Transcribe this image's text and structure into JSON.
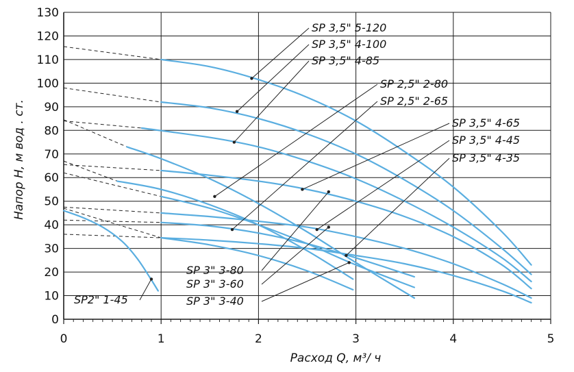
{
  "chart_data": {
    "type": "line",
    "title": "",
    "xlabel": "Расход  Q, м³/ ч",
    "ylabel": "Напор  Н, м вод . ст.",
    "xlim": [
      0,
      5
    ],
    "ylim": [
      0,
      130
    ],
    "x_ticks": [
      "0",
      "1",
      "2",
      "3",
      "4",
      "5"
    ],
    "y_ticks": [
      "0",
      "10",
      "20",
      "30",
      "40",
      "50",
      "60",
      "70",
      "80",
      "90",
      "100",
      "110",
      "120",
      "130"
    ],
    "grid": true,
    "colors": {
      "curve": "#5aaee0",
      "grid": "#1a1a1a",
      "extrapolation": "#222222",
      "leader": "#222222"
    },
    "series": [
      {
        "name": "SP 3,5\" 5-120",
        "solid": [
          [
            1.0,
            110
          ],
          [
            1.5,
            107
          ],
          [
            2.0,
            101.5
          ],
          [
            2.5,
            94
          ],
          [
            3.0,
            84
          ],
          [
            3.5,
            71
          ],
          [
            4.0,
            56
          ],
          [
            4.5,
            37
          ],
          [
            4.8,
            23
          ]
        ],
        "extrapolated": [
          [
            0,
            115.5
          ],
          [
            1.0,
            110
          ]
        ],
        "label_anchor": [
          1.93,
          102
        ]
      },
      {
        "name": "SP 3,5\" 4-100",
        "solid": [
          [
            1.0,
            92
          ],
          [
            1.5,
            89.5
          ],
          [
            2.0,
            85
          ],
          [
            2.5,
            78.5
          ],
          [
            3.0,
            70
          ],
          [
            3.5,
            59
          ],
          [
            4.0,
            46
          ],
          [
            4.5,
            30
          ],
          [
            4.8,
            19
          ]
        ],
        "extrapolated": [
          [
            0,
            98
          ],
          [
            1.0,
            92
          ]
        ],
        "label_anchor": [
          1.78,
          88
        ]
      },
      {
        "name": "SP 3,5\" 4-85",
        "solid": [
          [
            0.8,
            81
          ],
          [
            1.5,
            77
          ],
          [
            2.0,
            73
          ],
          [
            2.5,
            67
          ],
          [
            3.0,
            59.5
          ],
          [
            3.5,
            50
          ],
          [
            4.0,
            39
          ],
          [
            4.5,
            26
          ],
          [
            4.8,
            16
          ]
        ],
        "extrapolated": [
          [
            0,
            84
          ],
          [
            0.8,
            81
          ]
        ],
        "label_anchor": [
          1.75,
          75
        ]
      },
      {
        "name": "SP 2,5\" 2-80",
        "solid": [
          [
            0.65,
            73
          ],
          [
            1.0,
            68
          ],
          [
            1.5,
            59.5
          ],
          [
            2.0,
            49
          ],
          [
            2.5,
            37
          ],
          [
            3.0,
            24
          ],
          [
            3.6,
            9
          ]
        ],
        "extrapolated": [
          [
            0,
            84.5
          ],
          [
            0.65,
            73
          ]
        ],
        "label_anchor": [
          1.55,
          52
        ]
      },
      {
        "name": "SP 2,5\" 2-65",
        "solid": [
          [
            0.55,
            58.5
          ],
          [
            1.0,
            55
          ],
          [
            1.5,
            48.5
          ],
          [
            2.0,
            40
          ],
          [
            2.5,
            29
          ],
          [
            2.97,
            17
          ]
        ],
        "extrapolated": [
          [
            0,
            67
          ],
          [
            0.55,
            58.5
          ]
        ],
        "label_anchor": [
          1.73,
          38
        ]
      },
      {
        "name": "SP 3,5\" 4-65",
        "solid": [
          [
            1.0,
            63
          ],
          [
            1.5,
            61
          ],
          [
            2.0,
            58.5
          ],
          [
            2.5,
            55
          ],
          [
            3.0,
            50
          ],
          [
            3.5,
            43.5
          ],
          [
            4.0,
            35
          ],
          [
            4.5,
            23
          ],
          [
            4.8,
            13
          ]
        ],
        "extrapolated": [
          [
            0,
            65.5
          ],
          [
            1.0,
            63
          ]
        ],
        "label_anchor": [
          2.45,
          55
        ]
      },
      {
        "name": "SP 3,5\" 4-45",
        "solid": [
          [
            1.0,
            45
          ],
          [
            1.5,
            43.5
          ],
          [
            2.0,
            41.5
          ],
          [
            2.5,
            39
          ],
          [
            3.0,
            35
          ],
          [
            3.5,
            30
          ],
          [
            4.0,
            23.5
          ],
          [
            4.5,
            15
          ],
          [
            4.8,
            9
          ]
        ],
        "extrapolated": [
          [
            0,
            47.5
          ],
          [
            1.0,
            45
          ]
        ],
        "label_anchor": [
          2.6,
          38
        ]
      },
      {
        "name": "SP 3,5\" 4-35",
        "solid": [
          [
            1.0,
            34.5
          ],
          [
            1.5,
            33.5
          ],
          [
            2.0,
            32
          ],
          [
            2.5,
            30
          ],
          [
            3.0,
            27
          ],
          [
            3.5,
            23.5
          ],
          [
            4.0,
            18.5
          ],
          [
            4.5,
            12
          ],
          [
            4.8,
            7
          ]
        ],
        "extrapolated": [
          [
            0,
            36
          ],
          [
            1.0,
            34.5
          ]
        ],
        "label_anchor": [
          2.9,
          27
        ]
      },
      {
        "name": "SP 3\" 3-80",
        "solid": [
          [
            1.0,
            52
          ],
          [
            1.5,
            47
          ],
          [
            2.0,
            40
          ],
          [
            2.5,
            32
          ],
          [
            3.0,
            23
          ],
          [
            3.6,
            13.5
          ]
        ],
        "extrapolated": [
          [
            0,
            62
          ],
          [
            1.0,
            52
          ]
        ],
        "label_anchor": [
          2.72,
          54
        ]
      },
      {
        "name": "SP 3\" 3-60",
        "solid": [
          [
            1.0,
            41
          ],
          [
            1.5,
            39.5
          ],
          [
            2.0,
            36.5
          ],
          [
            2.5,
            32
          ],
          [
            3.0,
            26
          ],
          [
            3.6,
            18
          ]
        ],
        "extrapolated": [
          [
            0,
            42
          ],
          [
            1.0,
            41
          ]
        ],
        "label_anchor": [
          2.72,
          39
        ]
      },
      {
        "name": "SP 3\" 3-40",
        "solid": [
          [
            1.0,
            34.5
          ],
          [
            1.5,
            31.5
          ],
          [
            2.0,
            27
          ],
          [
            2.5,
            20.5
          ],
          [
            2.97,
            12.5
          ]
        ],
        "extrapolated": [
          [
            0,
            47
          ],
          [
            1.0,
            34.5
          ]
        ],
        "label_anchor": [
          2.93,
          24
        ]
      },
      {
        "name": "SP2\" 1-45",
        "solid": [
          [
            0,
            46
          ],
          [
            0.2,
            43
          ],
          [
            0.4,
            39
          ],
          [
            0.6,
            33
          ],
          [
            0.75,
            26
          ],
          [
            0.88,
            18
          ],
          [
            0.97,
            12
          ]
        ],
        "extrapolated": [],
        "label_anchor": [
          0.9,
          17
        ]
      }
    ]
  }
}
